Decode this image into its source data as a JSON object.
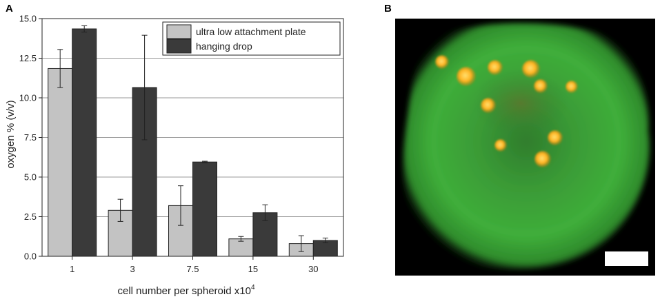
{
  "panels": {
    "a_label": "A",
    "b_label": "B"
  },
  "chart_data": {
    "type": "bar",
    "title": "",
    "xlabel": "cell number per spheroid x10",
    "xlabel_superscript": "4",
    "ylabel": "oxygen % (v/v)",
    "categories": [
      "1",
      "3",
      "7.5",
      "15",
      "30"
    ],
    "ylim": [
      0,
      15
    ],
    "yticks": [
      "0.0",
      "2.5",
      "5.0",
      "7.5",
      "10.0",
      "12.5",
      "15.0"
    ],
    "grid": "horizontal",
    "legend_position": "top-right",
    "series": [
      {
        "name": "ultra low attachment plate",
        "color": "#c3c3c3",
        "values": [
          11.85,
          2.9,
          3.2,
          1.1,
          0.8
        ],
        "errors": [
          1.2,
          0.7,
          1.25,
          0.15,
          0.5
        ]
      },
      {
        "name": "hanging drop",
        "color": "#3a3a3a",
        "values": [
          14.35,
          10.65,
          5.95,
          2.75,
          1.0
        ],
        "errors": [
          0.2,
          3.3,
          0.05,
          0.5,
          0.15
        ]
      }
    ]
  },
  "image": {
    "description_icon": "fluorescence-micrograph",
    "background": "#000000",
    "spheroid_color": "#3ca63a",
    "nuclei_color": "#ffb020",
    "scale_bar_color": "#ffffff"
  }
}
